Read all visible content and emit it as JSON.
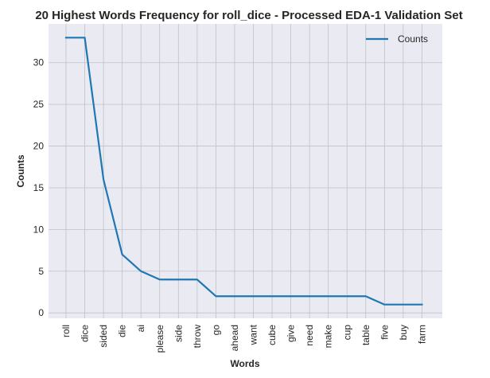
{
  "chart_data": {
    "type": "line",
    "title": "20 Highest Words Frequency for roll_dice - Processed EDA-1 Validation Set",
    "xlabel": "Words",
    "ylabel": "Counts",
    "categories": [
      "roll",
      "dice",
      "sided",
      "die",
      "ai",
      "please",
      "side",
      "throw",
      "go",
      "ahead",
      "want",
      "cube",
      "give",
      "need",
      "make",
      "cup",
      "table",
      "five",
      "buy",
      "farm"
    ],
    "series": [
      {
        "name": "Counts",
        "values": [
          33,
          33,
          16,
          7,
          5,
          4,
          4,
          4,
          2,
          2,
          2,
          2,
          2,
          2,
          2,
          2,
          2,
          1,
          1,
          1
        ]
      }
    ],
    "yticks": [
      0,
      5,
      10,
      15,
      20,
      25,
      30
    ],
    "ylim": [
      -0.65,
      34.65
    ],
    "grid": true,
    "legend": "top-right",
    "colors": {
      "line": "#1f77b4",
      "plot_bg": "#eaeaf2",
      "grid": "#c0c0c6"
    }
  }
}
